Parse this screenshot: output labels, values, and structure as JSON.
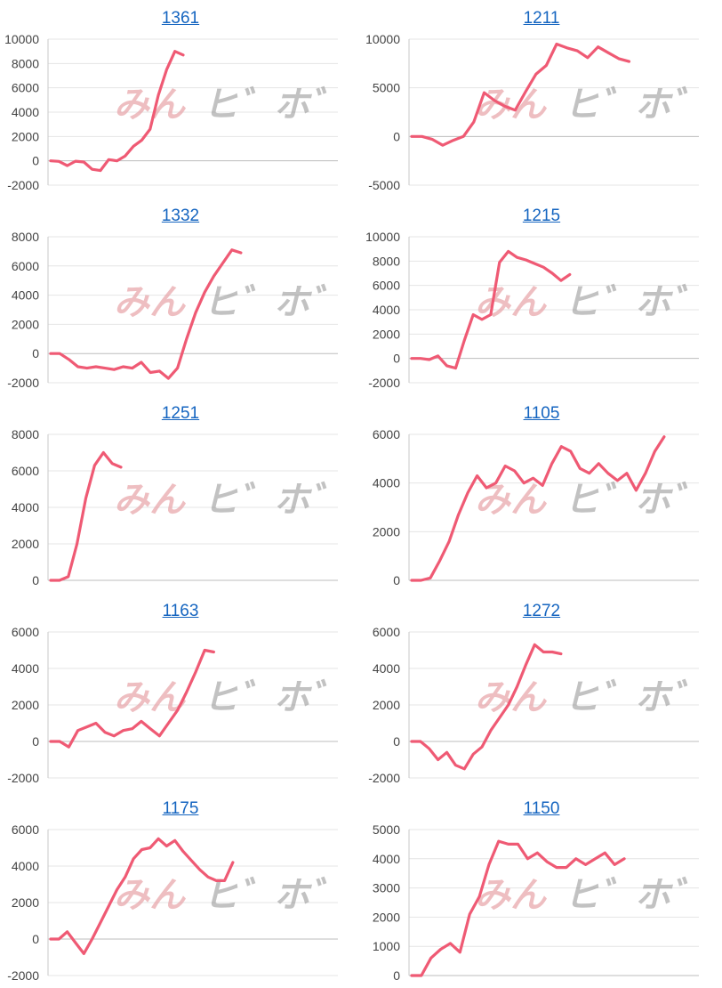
{
  "watermark": {
    "part1": "みん",
    "part2": "ヒ゛ホ゛"
  },
  "colors": {
    "line": "#ef5a74",
    "grid": "#e4e4e4",
    "axis": "#c8c8c8",
    "title_link": "#1565c0"
  },
  "chart_data": [
    {
      "type": "line",
      "title": "1361",
      "ylim": [
        -2000,
        10000
      ],
      "yticks": [
        -2000,
        0,
        2000,
        4000,
        6000,
        8000,
        10000
      ],
      "x_steps": 35,
      "grid": true,
      "values": [
        0,
        -50,
        -400,
        -30,
        -100,
        -700,
        -800,
        100,
        0,
        400,
        1200,
        1700,
        2600,
        5400,
        7500,
        9000,
        8700
      ]
    },
    {
      "type": "line",
      "title": "1211",
      "ylim": [
        -5000,
        10000
      ],
      "yticks": [
        -5000,
        0,
        5000,
        10000
      ],
      "x_steps": 28,
      "grid": true,
      "values": [
        0,
        0,
        -300,
        -900,
        -400,
        0,
        1500,
        4500,
        3700,
        3100,
        2700,
        4600,
        6400,
        7300,
        9500,
        9100,
        8800,
        8100,
        9200,
        8600,
        8000,
        7700
      ]
    },
    {
      "type": "line",
      "title": "1332",
      "ylim": [
        -2000,
        8000
      ],
      "yticks": [
        -2000,
        0,
        2000,
        4000,
        6000,
        8000
      ],
      "x_steps": 32,
      "grid": true,
      "values": [
        0,
        0,
        -400,
        -900,
        -1000,
        -900,
        -1000,
        -1100,
        -900,
        -1000,
        -600,
        -1300,
        -1200,
        -1700,
        -1000,
        1000,
        2800,
        4200,
        5300,
        6200,
        7100,
        6900
      ]
    },
    {
      "type": "line",
      "title": "1215",
      "ylim": [
        -2000,
        10000
      ],
      "yticks": [
        -2000,
        0,
        2000,
        4000,
        6000,
        8000,
        10000
      ],
      "x_steps": 33,
      "grid": true,
      "values": [
        0,
        0,
        -100,
        200,
        -600,
        -800,
        1500,
        3600,
        3200,
        3600,
        7900,
        8800,
        8300,
        8100,
        7800,
        7500,
        7000,
        6400,
        6900
      ]
    },
    {
      "type": "line",
      "title": "1251",
      "ylim": [
        0,
        8000
      ],
      "yticks": [
        0,
        2000,
        4000,
        6000,
        8000
      ],
      "x_steps": 33,
      "grid": true,
      "values": [
        0,
        0,
        200,
        2000,
        4500,
        6300,
        7000,
        6400,
        6200
      ]
    },
    {
      "type": "line",
      "title": "1105",
      "ylim": [
        0,
        6000
      ],
      "yticks": [
        0,
        2000,
        4000,
        6000
      ],
      "x_steps": 31,
      "grid": true,
      "values": [
        0,
        0,
        100,
        800,
        1600,
        2700,
        3600,
        4300,
        3800,
        4000,
        4700,
        4500,
        4000,
        4200,
        3900,
        4800,
        5500,
        5300,
        4600,
        4400,
        4800,
        4400,
        4100,
        4400,
        3700,
        4400,
        5300,
        5900
      ]
    },
    {
      "type": "line",
      "title": "1163",
      "ylim": [
        -2000,
        6000
      ],
      "yticks": [
        -2000,
        0,
        2000,
        4000,
        6000
      ],
      "x_steps": 32,
      "grid": true,
      "values": [
        0,
        0,
        -300,
        600,
        800,
        1000,
        500,
        300,
        600,
        700,
        1100,
        700,
        300,
        1000,
        1700,
        2700,
        3800,
        5000,
        4900
      ]
    },
    {
      "type": "line",
      "title": "1272",
      "ylim": [
        -2000,
        6000
      ],
      "yticks": [
        -2000,
        0,
        2000,
        4000,
        6000
      ],
      "x_steps": 33,
      "grid": true,
      "values": [
        0,
        0,
        -400,
        -1000,
        -600,
        -1300,
        -1500,
        -700,
        -300,
        600,
        1300,
        2000,
        3000,
        4200,
        5300,
        4900,
        4900,
        4800
      ]
    },
    {
      "type": "line",
      "title": "1175",
      "ylim": [
        -2000,
        6000
      ],
      "yticks": [
        -2000,
        0,
        2000,
        4000,
        6000
      ],
      "x_steps": 35,
      "grid": true,
      "values": [
        0,
        0,
        400,
        -200,
        -800,
        0,
        900,
        1800,
        2700,
        3400,
        4400,
        4900,
        5000,
        5500,
        5100,
        5400,
        4800,
        4300,
        3800,
        3400,
        3200,
        3200,
        4200
      ]
    },
    {
      "type": "line",
      "title": "1150",
      "ylim": [
        0,
        5000
      ],
      "yticks": [
        0,
        1000,
        2000,
        3000,
        4000,
        5000
      ],
      "x_steps": 30,
      "grid": true,
      "values": [
        0,
        0,
        600,
        900,
        1100,
        800,
        2100,
        2700,
        3800,
        4600,
        4500,
        4500,
        4000,
        4200,
        3900,
        3700,
        3700,
        4000,
        3800,
        4000,
        4200,
        3800,
        4000
      ]
    }
  ]
}
